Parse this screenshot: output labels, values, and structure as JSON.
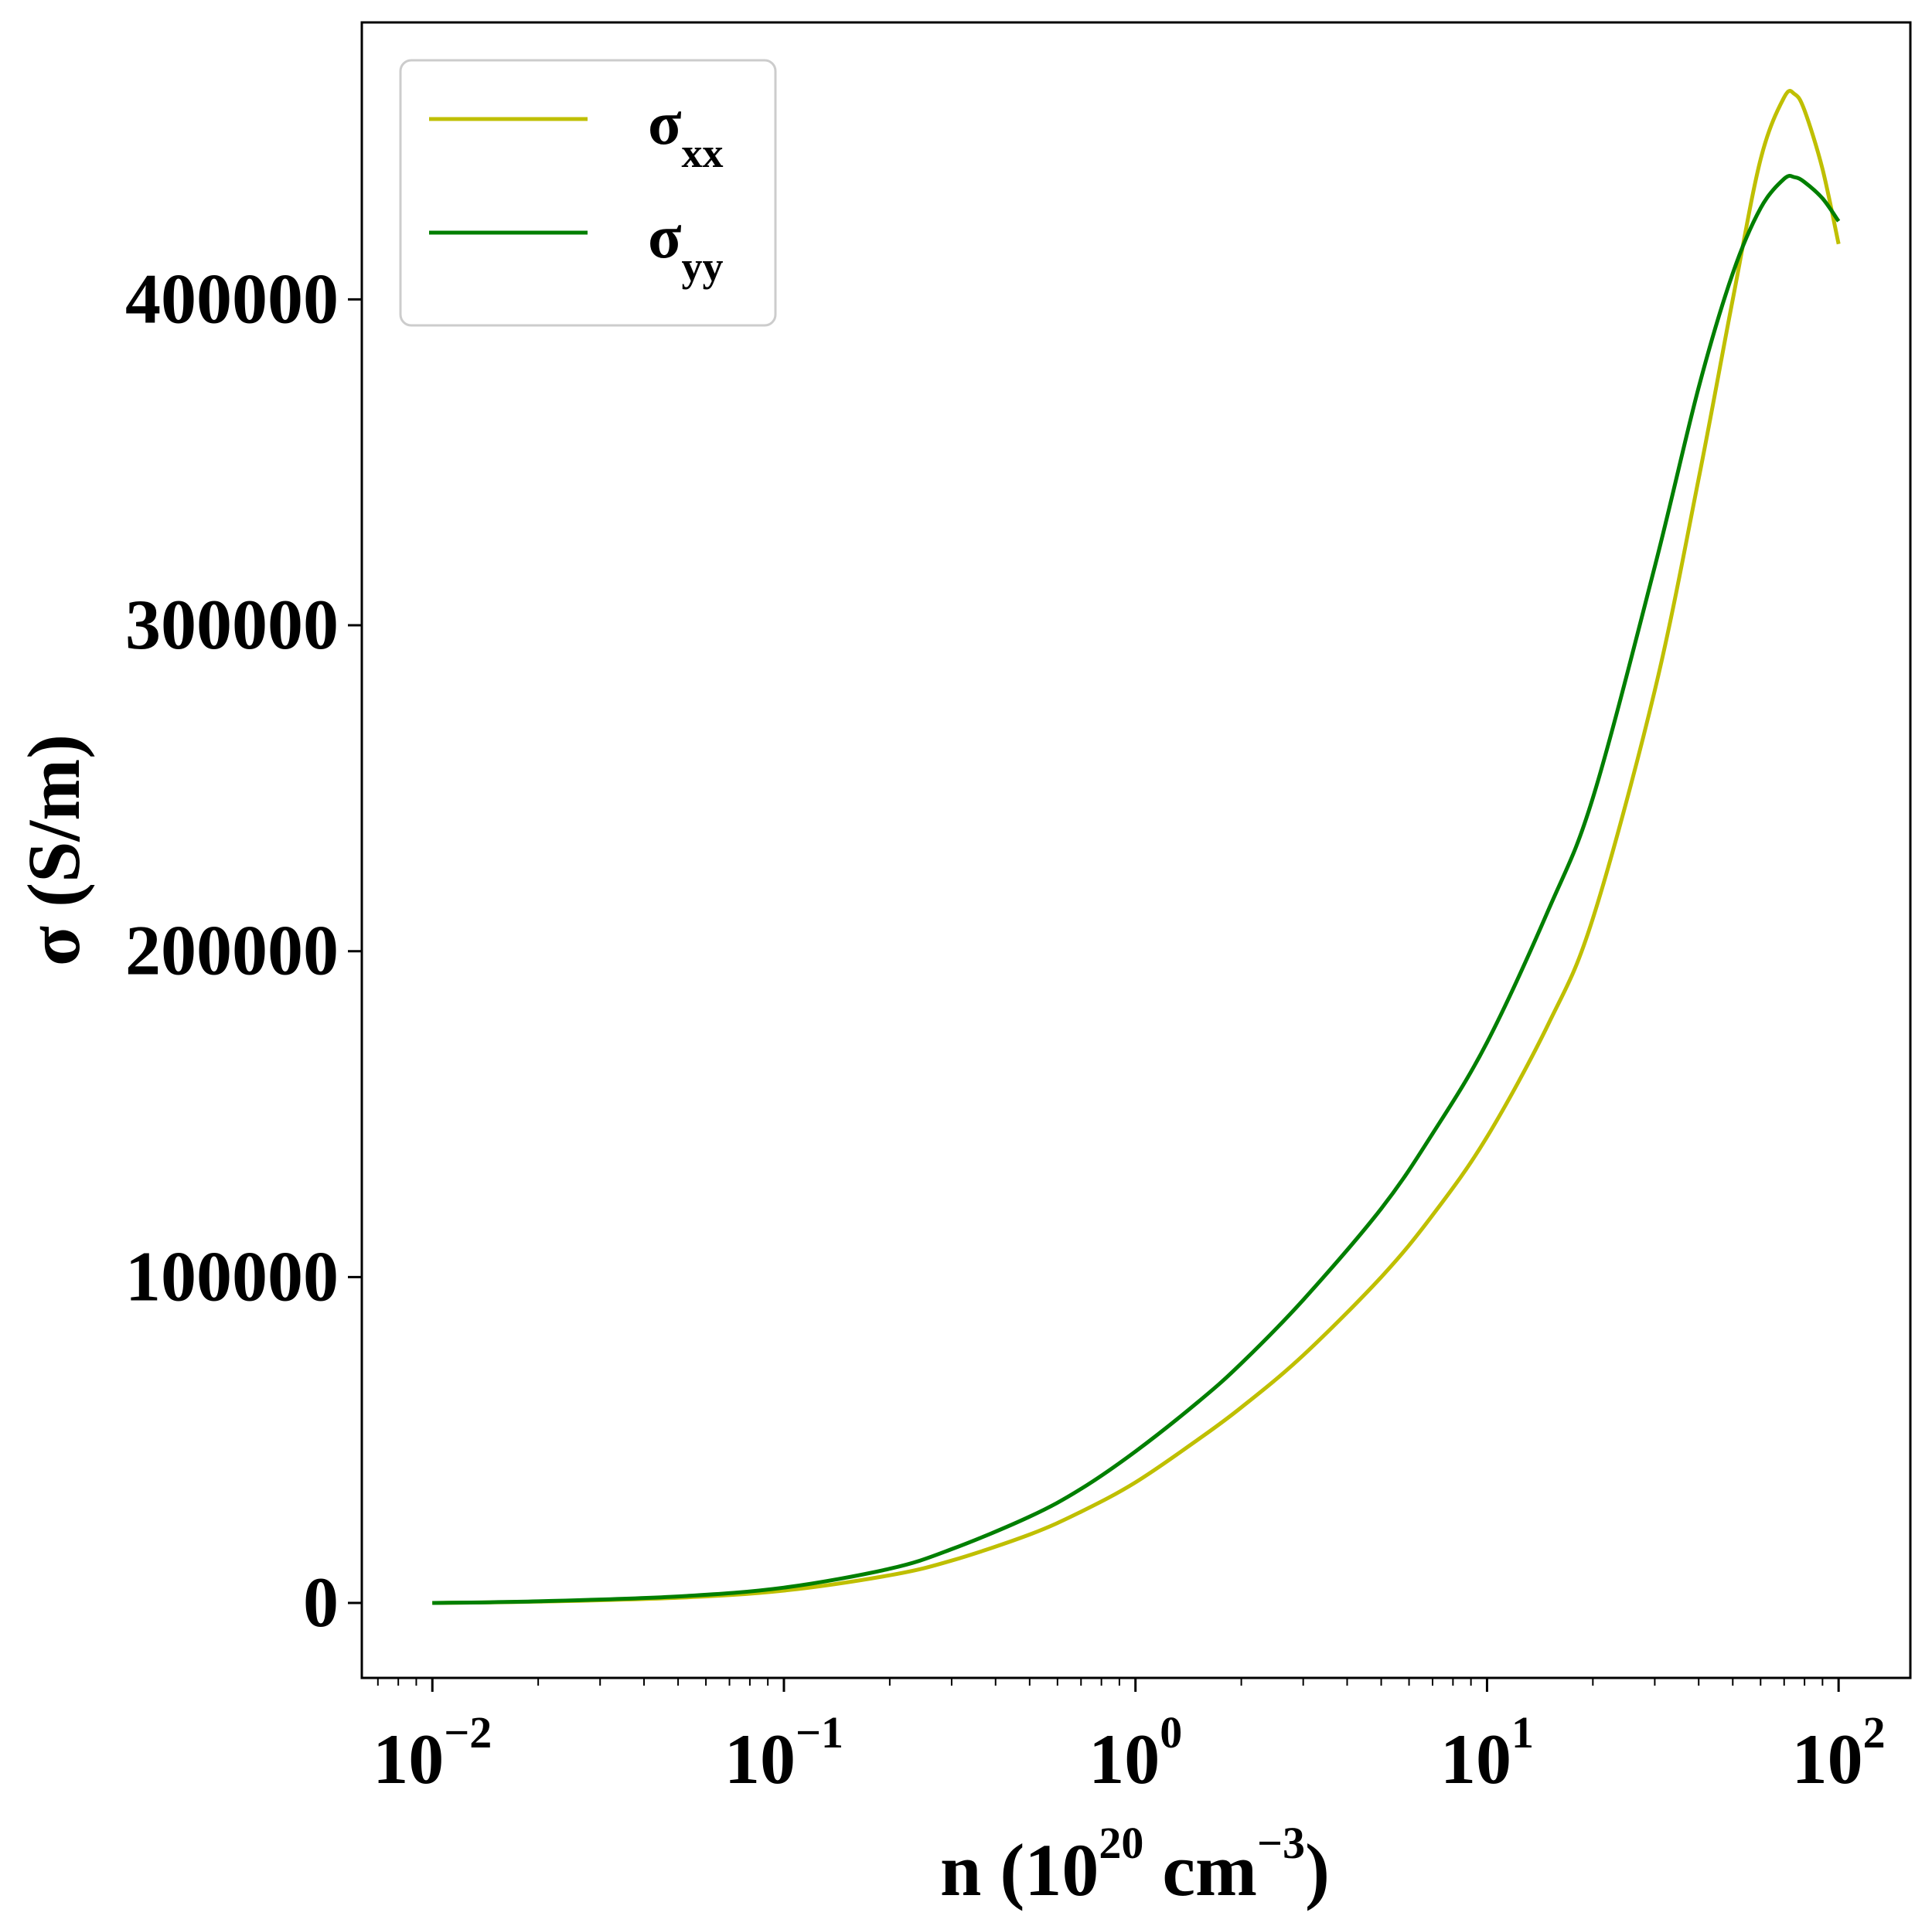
{
  "chart_data": {
    "type": "line",
    "xlabel": {
      "base": "n (10",
      "exp1": "20",
      "mid": " cm",
      "exp2": "−3",
      "end": ")"
    },
    "ylabel": "σ (S/m)",
    "xscale": "log",
    "xlim": [
      0.0063,
      160
    ],
    "ylim": [
      -23000,
      485000
    ],
    "x_ticks": [
      {
        "value": 0.01,
        "base": "10",
        "exp": "−2"
      },
      {
        "value": 0.1,
        "base": "10",
        "exp": "−1"
      },
      {
        "value": 1,
        "base": "10",
        "exp": "0"
      },
      {
        "value": 10,
        "base": "10",
        "exp": "1"
      },
      {
        "value": 100,
        "base": "10",
        "exp": "2"
      }
    ],
    "y_ticks": [
      {
        "value": 0,
        "label": "0"
      },
      {
        "value": 100000,
        "label": "100000"
      },
      {
        "value": 200000,
        "label": "200000"
      },
      {
        "value": 300000,
        "label": "300000"
      },
      {
        "value": 400000,
        "label": "400000"
      }
    ],
    "grid": false,
    "legend_position": "top-left",
    "series": [
      {
        "name": "σ",
        "sub": "xx",
        "color": "#bfbf00",
        "x": [
          0.01,
          0.02,
          0.05,
          0.1,
          0.2,
          0.3,
          0.5,
          0.7,
          1,
          1.5,
          2,
          3,
          5,
          7,
          10,
          15,
          20,
          30,
          40,
          50,
          60,
          70,
          75,
          80,
          90,
          100
        ],
        "y": [
          0,
          400,
          1600,
          3800,
          8500,
          13000,
          21000,
          28000,
          37000,
          50000,
          60000,
          76000,
          100000,
          119000,
          143000,
          178000,
          210000,
          280000,
          345000,
          400000,
          443000,
          462000,
          463000,
          458000,
          440000,
          417000
        ]
      },
      {
        "name": "σ",
        "sub": "yy",
        "color": "#007f00",
        "x": [
          0.01,
          0.02,
          0.05,
          0.1,
          0.2,
          0.3,
          0.5,
          0.7,
          1,
          1.5,
          2,
          3,
          5,
          7,
          10,
          15,
          20,
          30,
          40,
          50,
          60,
          70,
          75,
          80,
          90,
          100
        ],
        "y": [
          0,
          500,
          2000,
          4700,
          10500,
          16500,
          26500,
          35000,
          46500,
          61500,
          73500,
          93000,
          121000,
          144000,
          172000,
          213000,
          247000,
          318000,
          373000,
          408000,
          428000,
          437000,
          437500,
          436000,
          431000,
          424000
        ]
      }
    ]
  }
}
